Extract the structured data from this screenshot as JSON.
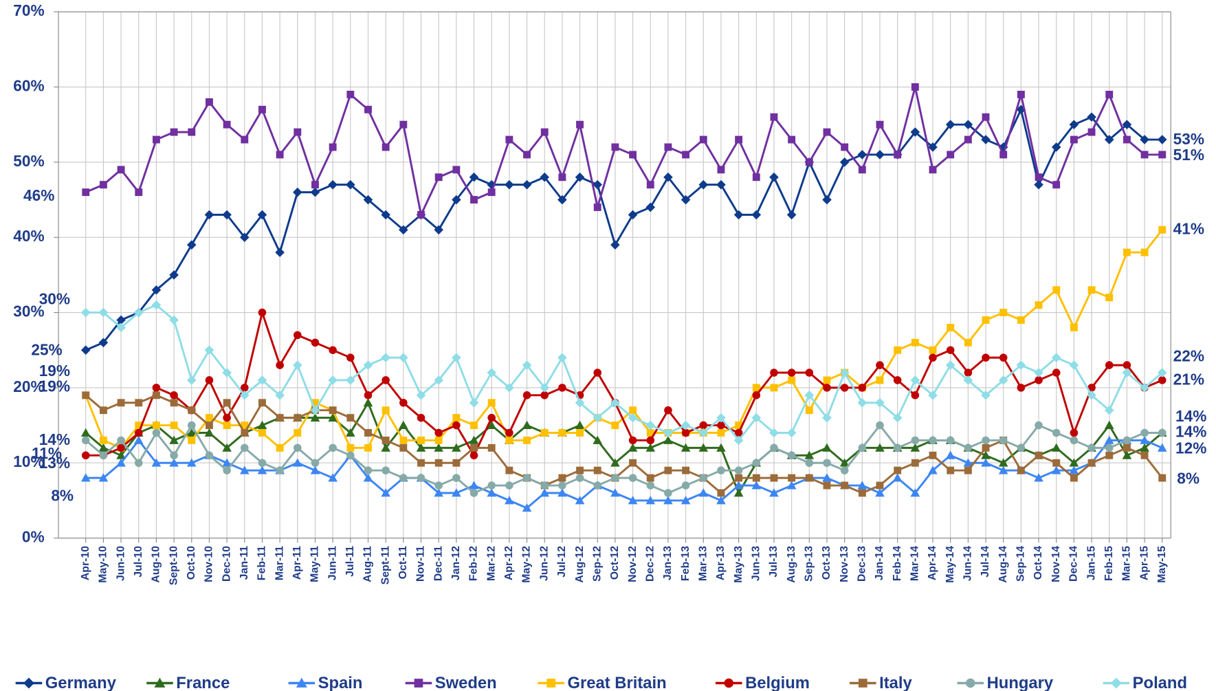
{
  "chart_data": {
    "type": "line",
    "categories": [
      "Apr-10",
      "May-10",
      "Jun-10",
      "Jul-10",
      "Aug-10",
      "Sept-10",
      "Oct-10",
      "Nov-10",
      "Dec-10",
      "Jan-11",
      "Feb-11",
      "Mar-11",
      "Apr-11",
      "May-11",
      "Jun-11",
      "Jul-11",
      "Aug-11",
      "Sept-11",
      "Oct-11",
      "Nov-11",
      "Dec-11",
      "Jan-12",
      "Feb-12",
      "Mar-12",
      "Apr-12",
      "May-12",
      "Jun-12",
      "Jul-12",
      "Aug-12",
      "Sep-12",
      "Oct-12",
      "Nov-12",
      "Dec-12",
      "Jan-13",
      "Feb-13",
      "Mar-13",
      "Apr-13",
      "May-13",
      "Jun-13",
      "Jul-13",
      "Aug-13",
      "Sep-13",
      "Oct-13",
      "Nov-13",
      "Dec-13",
      "Jan-14",
      "Feb-14",
      "Mar-14",
      "Apr-14",
      "May-14",
      "Jun-14",
      "Jul-14",
      "Aug-14",
      "Sep-14",
      "Oct-14",
      "Nov-14",
      "Dec-14",
      "Jan-15",
      "Feb-15",
      "Mar-15",
      "Apr-15",
      "May-15"
    ],
    "ylim": [
      0,
      70
    ],
    "yticks": [
      {
        "value": 0,
        "label": "0%"
      },
      {
        "value": 10,
        "label": "10%"
      },
      {
        "value": 20,
        "label": "20%"
      },
      {
        "value": 30,
        "label": "30%"
      },
      {
        "value": 40,
        "label": "40%"
      },
      {
        "value": 50,
        "label": "50%"
      },
      {
        "value": 60,
        "label": "60%"
      },
      {
        "value": 70,
        "label": "70%"
      }
    ],
    "grid": true,
    "legend": "bottom",
    "series": [
      {
        "name": "Germany",
        "color": "#0f3b8c",
        "marker": "diamond",
        "start_label": "25%",
        "end_label": "53%",
        "values": [
          25,
          26,
          29,
          30,
          33,
          35,
          39,
          43,
          43,
          40,
          43,
          38,
          46,
          46,
          47,
          47,
          45,
          43,
          41,
          43,
          41,
          45,
          48,
          47,
          47,
          47,
          48,
          45,
          48,
          47,
          39,
          43,
          44,
          48,
          45,
          47,
          47,
          43,
          43,
          48,
          43,
          50,
          45,
          50,
          51,
          51,
          51,
          54,
          52,
          55,
          55,
          53,
          52,
          57,
          47,
          52,
          55,
          56,
          53,
          55,
          53,
          53
        ]
      },
      {
        "name": "France",
        "color": "#2f6b1e",
        "marker": "triangle",
        "start_label": "14%",
        "end_label": "14%",
        "values": [
          14,
          12,
          11,
          14,
          15,
          13,
          14,
          14,
          12,
          14,
          15,
          16,
          16,
          16,
          16,
          14,
          18,
          12,
          15,
          12,
          12,
          12,
          13,
          15,
          13,
          15,
          14,
          14,
          15,
          13,
          10,
          12,
          12,
          13,
          12,
          12,
          12,
          6,
          10,
          12,
          11,
          11,
          12,
          10,
          12,
          12,
          12,
          12,
          13,
          13,
          12,
          11,
          10,
          12,
          11,
          12,
          10,
          12,
          15,
          11,
          12,
          14
        ]
      },
      {
        "name": "Spain",
        "color": "#3d86f2",
        "marker": "triangle",
        "start_label": "8%",
        "end_label": "12%",
        "values": [
          8,
          8,
          10,
          13,
          10,
          10,
          10,
          11,
          10,
          9,
          9,
          9,
          10,
          9,
          8,
          11,
          8,
          6,
          8,
          8,
          6,
          6,
          7,
          6,
          5,
          4,
          6,
          6,
          5,
          7,
          6,
          5,
          5,
          5,
          5,
          6,
          5,
          7,
          7,
          6,
          7,
          8,
          8,
          7,
          7,
          6,
          8,
          6,
          9,
          11,
          10,
          10,
          9,
          9,
          8,
          9,
          9,
          10,
          13,
          13,
          13,
          12
        ]
      },
      {
        "name": "Sweden",
        "color": "#7030a0",
        "marker": "square",
        "start_label": "46%",
        "end_label": "51%",
        "values": [
          46,
          47,
          49,
          46,
          53,
          54,
          54,
          58,
          55,
          53,
          57,
          51,
          54,
          47,
          52,
          59,
          57,
          52,
          55,
          43,
          48,
          49,
          45,
          46,
          53,
          51,
          54,
          48,
          55,
          44,
          52,
          51,
          47,
          52,
          51,
          53,
          49,
          53,
          48,
          56,
          53,
          50,
          54,
          52,
          49,
          55,
          51,
          60,
          49,
          51,
          53,
          56,
          51,
          59,
          48,
          47,
          53,
          54,
          59,
          53,
          51,
          51
        ]
      },
      {
        "name": "Great Britain",
        "color": "#ffc000",
        "marker": "square",
        "start_label": "19%",
        "end_label": "41%",
        "values": [
          19,
          13,
          12,
          15,
          15,
          15,
          13,
          16,
          15,
          15,
          14,
          12,
          14,
          18,
          17,
          12,
          12,
          17,
          13,
          13,
          13,
          16,
          15,
          18,
          13,
          13,
          14,
          14,
          14,
          16,
          15,
          17,
          14,
          14,
          14,
          14,
          14,
          15,
          20,
          20,
          21,
          17,
          21,
          22,
          20,
          21,
          25,
          26,
          25,
          28,
          26,
          29,
          30,
          29,
          31,
          33,
          28,
          33,
          32,
          38,
          38,
          41
        ]
      },
      {
        "name": "Belgium",
        "color": "#c00000",
        "marker": "circle",
        "start_label": "11%",
        "end_label": "21%",
        "values": [
          11,
          11,
          12,
          14,
          20,
          19,
          17,
          21,
          16,
          20,
          30,
          23,
          27,
          26,
          25,
          24,
          19,
          21,
          18,
          16,
          14,
          15,
          11,
          16,
          14,
          19,
          19,
          20,
          19,
          22,
          18,
          13,
          13,
          17,
          14,
          15,
          15,
          14,
          19,
          22,
          22,
          22,
          20,
          20,
          20,
          23,
          21,
          19,
          24,
          25,
          22,
          24,
          24,
          20,
          21,
          22,
          14,
          20,
          23,
          23,
          20,
          21
        ]
      },
      {
        "name": "Italy",
        "color": "#9c6b3a",
        "marker": "square",
        "start_label": "19%",
        "end_label": "8%",
        "values": [
          19,
          17,
          18,
          18,
          19,
          18,
          17,
          15,
          18,
          14,
          18,
          16,
          16,
          17,
          17,
          16,
          14,
          13,
          12,
          10,
          10,
          10,
          12,
          12,
          9,
          8,
          7,
          8,
          9,
          9,
          8,
          10,
          8,
          9,
          9,
          8,
          6,
          8,
          8,
          8,
          8,
          8,
          7,
          7,
          6,
          7,
          9,
          10,
          11,
          9,
          9,
          12,
          13,
          9,
          11,
          10,
          8,
          10,
          11,
          12,
          11,
          8
        ]
      },
      {
        "name": "Hungary",
        "color": "#86aaa8",
        "marker": "circle",
        "start_label": "13%",
        "end_label": "14%",
        "values": [
          13,
          11,
          13,
          10,
          14,
          11,
          15,
          11,
          9,
          12,
          10,
          9,
          12,
          10,
          12,
          11,
          9,
          9,
          8,
          8,
          7,
          8,
          6,
          7,
          7,
          8,
          7,
          7,
          8,
          7,
          8,
          8,
          7,
          6,
          7,
          8,
          9,
          9,
          10,
          12,
          11,
          10,
          10,
          9,
          12,
          15,
          12,
          13,
          13,
          13,
          12,
          13,
          13,
          12,
          15,
          14,
          13,
          12,
          12,
          13,
          14,
          14
        ]
      },
      {
        "name": "Poland",
        "color": "#8fdde6",
        "marker": "diamond",
        "start_label": "30%",
        "end_label": "22%",
        "values": [
          30,
          30,
          28,
          30,
          31,
          29,
          21,
          25,
          22,
          19,
          21,
          19,
          23,
          17,
          21,
          21,
          23,
          24,
          24,
          19,
          21,
          24,
          18,
          22,
          20,
          23,
          20,
          24,
          18,
          16,
          18,
          16,
          15,
          14,
          15,
          14,
          16,
          13,
          16,
          14,
          14,
          19,
          16,
          22,
          18,
          18,
          16,
          21,
          19,
          23,
          21,
          19,
          21,
          23,
          22,
          24,
          23,
          19,
          17,
          22,
          20,
          22
        ]
      }
    ]
  }
}
